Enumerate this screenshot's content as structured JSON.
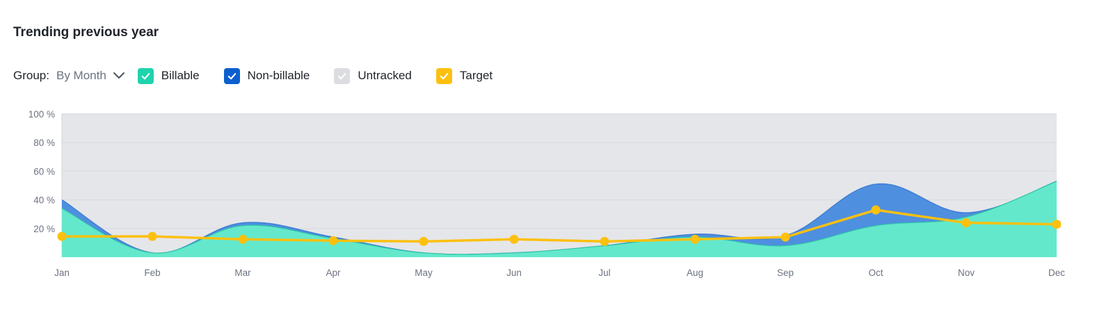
{
  "title": "Trending previous year",
  "group": {
    "label": "Group:",
    "value": "By Month",
    "icon": "chevron-down-icon"
  },
  "legend": [
    {
      "label": "Billable",
      "color": "#1fd3ac",
      "checked": true,
      "icon": "check-icon"
    },
    {
      "label": "Non-billable",
      "color": "#0c5fcf",
      "checked": true,
      "icon": "check-icon"
    },
    {
      "label": "Untracked",
      "color": "#dcdde0",
      "checked": true,
      "icon": "check-icon"
    },
    {
      "label": "Target",
      "color": "#fcc00f",
      "checked": true,
      "icon": "check-icon"
    }
  ],
  "chart_data": {
    "type": "area",
    "categories": [
      "Jan",
      "Feb",
      "Mar",
      "Apr",
      "May",
      "Jun",
      "Jul",
      "Aug",
      "Sep",
      "Oct",
      "Nov",
      "Dec"
    ],
    "y_ticks": [
      "100 %",
      "80 %",
      "60 %",
      "40 %",
      "20 %"
    ],
    "ylim": [
      0,
      100
    ],
    "series": [
      {
        "name": "Billable",
        "kind": "stacked-area",
        "color": "#64e8cc",
        "values": [
          34,
          3,
          22,
          13,
          3,
          3,
          8,
          14,
          8,
          22,
          28,
          53
        ]
      },
      {
        "name": "Non-billable",
        "kind": "stacked-area",
        "color": "#4f8fdf",
        "values": [
          6,
          0,
          2,
          1,
          0,
          0,
          0,
          2,
          7,
          29,
          3,
          0
        ]
      },
      {
        "name": "Untracked",
        "kind": "area",
        "color": "#e5e6e9",
        "values": [
          100,
          100,
          100,
          100,
          100,
          100,
          100,
          100,
          100,
          100,
          100,
          100
        ]
      },
      {
        "name": "Target",
        "kind": "line",
        "color": "#fcc00f",
        "values": [
          14.5,
          14.5,
          12.5,
          11.5,
          11,
          12.5,
          11,
          12.5,
          14,
          33,
          24,
          23
        ]
      }
    ]
  }
}
